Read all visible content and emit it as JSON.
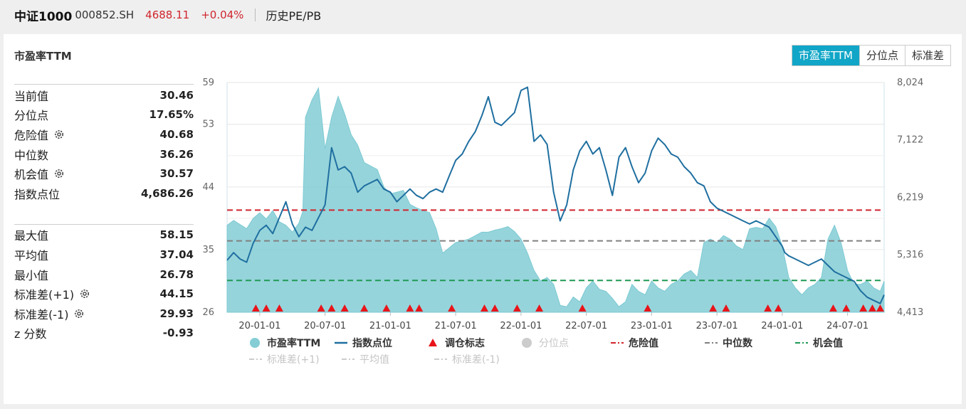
{
  "header": {
    "index_name": "中证1000",
    "index_code": "000852.SH",
    "price": "4688.11",
    "change": "+0.04%",
    "metric_title": "历史PE/PB",
    "price_color": "#d0252d"
  },
  "panel": {
    "title": "市盈率TTM",
    "tabs": [
      {
        "label": "市盈率TTM",
        "active": true
      },
      {
        "label": "分位点",
        "active": false
      },
      {
        "label": "标准差",
        "active": false
      }
    ]
  },
  "stats_current": [
    {
      "label": "当前值",
      "value": "30.46",
      "has_gear": false
    },
    {
      "label": "分位点",
      "value": "17.65%",
      "has_gear": false
    },
    {
      "label": "危险值",
      "value": "40.68",
      "has_gear": true
    },
    {
      "label": "中位数",
      "value": "36.26",
      "has_gear": false
    },
    {
      "label": "机会值",
      "value": "30.57",
      "has_gear": true
    },
    {
      "label": "指数点位",
      "value": "4,686.26",
      "has_gear": false
    }
  ],
  "stats_summary": [
    {
      "label": "最大值",
      "value": "58.15",
      "has_gear": false
    },
    {
      "label": "平均值",
      "value": "37.04",
      "has_gear": false
    },
    {
      "label": "最小值",
      "value": "26.78",
      "has_gear": false
    },
    {
      "label": "标准差(+1)",
      "value": "44.15",
      "has_gear": true
    },
    {
      "label": "标准差(-1)",
      "value": "29.93",
      "has_gear": true
    },
    {
      "label": "z 分数",
      "value": "-0.93",
      "has_gear": false
    }
  ],
  "chart_data": {
    "type": "area",
    "x_tick_labels": [
      "20-01-01",
      "20-07-01",
      "21-01-01",
      "21-07-01",
      "22-01-01",
      "22-07-01",
      "23-01-01",
      "23-07-01",
      "24-01-01",
      "24-07-01"
    ],
    "y_left": {
      "ticks": [
        "59",
        "53",
        "44",
        "35",
        "26"
      ],
      "min": 26,
      "max": 59
    },
    "y_right": {
      "ticks": [
        "8,024",
        "7,122",
        "6,219",
        "5,316",
        "4,413"
      ],
      "min": 4413,
      "max": 8024
    },
    "x_range": [
      2019.75,
      2024.78
    ],
    "series": [
      {
        "name": "市盈率TTM",
        "color": "#84cdd5",
        "axis": "left",
        "x": [
          2019.75,
          2019.8,
          2019.9,
          2019.95,
          2020.0,
          2020.05,
          2020.1,
          2020.15,
          2020.2,
          2020.25,
          2020.3,
          2020.33,
          2020.35,
          2020.4,
          2020.45,
          2020.5,
          2020.55,
          2020.6,
          2020.65,
          2020.7,
          2020.75,
          2020.8,
          2020.9,
          2020.95,
          2021.0,
          2021.1,
          2021.15,
          2021.2,
          2021.25,
          2021.3,
          2021.35,
          2021.4,
          2021.5,
          2021.6,
          2021.7,
          2021.75,
          2021.8,
          2021.85,
          2021.9,
          2021.95,
          2022.0,
          2022.05,
          2022.1,
          2022.15,
          2022.2,
          2022.25,
          2022.3,
          2022.35,
          2022.4,
          2022.45,
          2022.5,
          2022.55,
          2022.6,
          2022.65,
          2022.7,
          2022.75,
          2022.8,
          2022.85,
          2022.9,
          2022.95,
          2023.0,
          2023.05,
          2023.1,
          2023.15,
          2023.2,
          2023.25,
          2023.3,
          2023.35,
          2023.4,
          2023.45,
          2023.5,
          2023.55,
          2023.6,
          2023.65,
          2023.7,
          2023.75,
          2023.8,
          2023.85,
          2023.9,
          2023.95,
          2024.0,
          2024.05,
          2024.1,
          2024.15,
          2024.2,
          2024.25,
          2024.3,
          2024.35,
          2024.4,
          2024.45,
          2024.5,
          2024.55,
          2024.6,
          2024.65,
          2024.7,
          2024.75,
          2024.78
        ],
        "values": [
          38.5,
          39.2,
          38.0,
          39.5,
          40.3,
          39.4,
          40.6,
          39.0,
          38.5,
          37.5,
          38.8,
          40.5,
          54.0,
          56.5,
          58.2,
          49.5,
          54.0,
          57.0,
          54.5,
          51.5,
          50.0,
          47.5,
          46.5,
          44.0,
          43.0,
          43.5,
          41.5,
          41.0,
          40.6,
          40.3,
          38.0,
          34.5,
          36.0,
          36.5,
          37.5,
          37.5,
          37.8,
          38.0,
          38.3,
          37.6,
          36.5,
          34.5,
          32.0,
          30.5,
          31.0,
          30.0,
          27.0,
          26.8,
          28.2,
          27.5,
          29.5,
          30.5,
          29.3,
          29.0,
          28.0,
          26.8,
          27.5,
          30.0,
          29.0,
          28.5,
          30.5,
          29.5,
          29.0,
          30.0,
          30.5,
          31.5,
          32.0,
          31.0,
          36.0,
          36.5,
          36.0,
          37.0,
          36.5,
          35.5,
          35.0,
          38.0,
          38.2,
          38.0,
          39.5,
          38.3,
          35.5,
          31.0,
          29.5,
          28.5,
          29.5,
          30.0,
          31.0,
          36.5,
          38.5,
          36.0,
          32.0,
          30.0,
          30.0,
          30.5,
          29.5,
          29.0,
          30.46
        ]
      },
      {
        "name": "指数点位",
        "color": "#1f6fa0",
        "axis": "right",
        "x": [
          2019.75,
          2019.8,
          2019.85,
          2019.9,
          2019.95,
          2020.0,
          2020.05,
          2020.1,
          2020.15,
          2020.2,
          2020.25,
          2020.3,
          2020.35,
          2020.4,
          2020.45,
          2020.5,
          2020.55,
          2020.6,
          2020.65,
          2020.7,
          2020.75,
          2020.8,
          2020.9,
          2020.95,
          2021.0,
          2021.05,
          2021.1,
          2021.15,
          2021.2,
          2021.25,
          2021.3,
          2021.35,
          2021.4,
          2021.45,
          2021.5,
          2021.55,
          2021.6,
          2021.65,
          2021.7,
          2021.75,
          2021.8,
          2021.85,
          2021.9,
          2021.95,
          2022.0,
          2022.05,
          2022.1,
          2022.15,
          2022.2,
          2022.25,
          2022.3,
          2022.35,
          2022.4,
          2022.45,
          2022.5,
          2022.55,
          2022.6,
          2022.65,
          2022.7,
          2022.75,
          2022.8,
          2022.85,
          2022.9,
          2022.95,
          2023.0,
          2023.05,
          2023.1,
          2023.15,
          2023.2,
          2023.25,
          2023.3,
          2023.35,
          2023.4,
          2023.45,
          2023.5,
          2023.55,
          2023.6,
          2023.65,
          2023.7,
          2023.75,
          2023.8,
          2023.85,
          2023.9,
          2023.95,
          2024.0,
          2024.02,
          2024.05,
          2024.1,
          2024.15,
          2024.2,
          2024.25,
          2024.3,
          2024.35,
          2024.4,
          2024.45,
          2024.5,
          2024.55,
          2024.6,
          2024.65,
          2024.7,
          2024.75,
          2024.78
        ],
        "values": [
          5230,
          5350,
          5250,
          5200,
          5500,
          5700,
          5780,
          5650,
          5900,
          6150,
          5800,
          5600,
          5750,
          5700,
          5900,
          6100,
          7000,
          6650,
          6700,
          6600,
          6300,
          6400,
          6500,
          6350,
          6300,
          6150,
          6250,
          6350,
          6250,
          6200,
          6300,
          6350,
          6300,
          6550,
          6800,
          6900,
          7100,
          7250,
          7500,
          7800,
          7400,
          7350,
          7450,
          7550,
          7900,
          7950,
          7100,
          7200,
          7050,
          6300,
          5850,
          6100,
          6650,
          6950,
          7100,
          6900,
          7000,
          6650,
          6250,
          6850,
          7000,
          6700,
          6450,
          6600,
          6950,
          7150,
          7050,
          6900,
          6850,
          6700,
          6600,
          6450,
          6400,
          6150,
          6050,
          6000,
          5950,
          5900,
          5850,
          5800,
          5850,
          5800,
          5750,
          5600,
          5450,
          5350,
          5300,
          5250,
          5200,
          5150,
          5200,
          5250,
          5150,
          5050,
          5000,
          4950,
          4900,
          4750,
          4650,
          4600,
          4550,
          4686
        ]
      }
    ],
    "reference_lines": [
      {
        "name": "危险值",
        "value": 40.68,
        "color": "#d0252d"
      },
      {
        "name": "中位数",
        "value": 36.26,
        "color": "#808080"
      },
      {
        "name": "机会值",
        "value": 30.57,
        "color": "#1f9a55"
      }
    ],
    "rebalance_markers": {
      "name": "调仓标志",
      "color": "#e8141a",
      "x": [
        2019.97,
        2020.05,
        2020.15,
        2020.47,
        2020.55,
        2020.65,
        2020.8,
        2020.97,
        2021.15,
        2021.22,
        2021.47,
        2021.72,
        2021.8,
        2021.97,
        2022.14,
        2022.47,
        2022.97,
        2023.47,
        2023.57,
        2023.89,
        2023.97,
        2024.39,
        2024.49,
        2024.62,
        2024.69,
        2024.75
      ]
    },
    "legend": [
      {
        "name": "市盈率TTM",
        "symbol": "circle",
        "color": "#84cdd5",
        "muted": false
      },
      {
        "name": "指数点位",
        "symbol": "line",
        "color": "#1f6fa0",
        "muted": false
      },
      {
        "name": "调仓标志",
        "symbol": "triangle",
        "color": "#e8141a",
        "muted": false
      },
      {
        "name": "分位点",
        "symbol": "circle",
        "color": "#cccccc",
        "muted": true
      },
      {
        "name": "危险值",
        "symbol": "dash",
        "color": "#d0252d",
        "muted": false
      },
      {
        "name": "中位数",
        "symbol": "dash",
        "color": "#808080",
        "muted": false
      },
      {
        "name": "机会值",
        "symbol": "dash",
        "color": "#1f9a55",
        "muted": false
      },
      {
        "name": "标准差(+1)",
        "symbol": "dash",
        "color": "#cccccc",
        "muted": true
      },
      {
        "name": "平均值",
        "symbol": "dash",
        "color": "#cccccc",
        "muted": true
      },
      {
        "name": "标准差(-1)",
        "symbol": "dash",
        "color": "#cccccc",
        "muted": true
      }
    ]
  }
}
